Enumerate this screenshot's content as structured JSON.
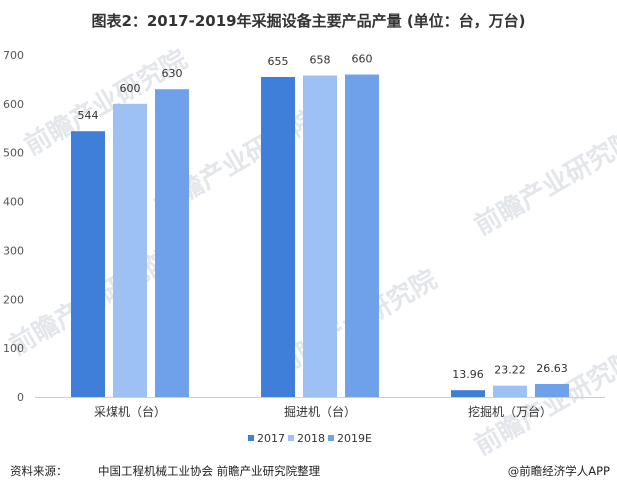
{
  "chart_data": {
    "type": "bar",
    "title": "图表2：2017-2019年采掘设备主要产品产量 (单位：台，万台)",
    "categories": [
      "采煤机（台）",
      "掘进机（台）",
      "挖掘机（万台）"
    ],
    "series": [
      {
        "name": "2017",
        "values": [
          544,
          655,
          13.96
        ],
        "labels": [
          "544",
          "655",
          "13.96"
        ],
        "color": "#3f7fd9"
      },
      {
        "name": "2018",
        "values": [
          600,
          658,
          23.22
        ],
        "labels": [
          "600",
          "658",
          "23.22"
        ],
        "color": "#9cc1f2"
      },
      {
        "name": "2019E",
        "values": [
          630,
          660,
          26.63
        ],
        "labels": [
          "630",
          "660",
          "26.63"
        ],
        "color": "#6ea1ea"
      }
    ],
    "ylim": [
      0,
      700
    ],
    "yticks": [
      "0",
      "100",
      "200",
      "300",
      "400",
      "500",
      "600",
      "700"
    ],
    "grid": false,
    "legend": "bottom"
  },
  "watermark": "前瞻产业研究院",
  "footer": {
    "source_label": "资料来源：",
    "source_text": "中国工程机械工业协会  前瞻产业研究院整理",
    "brand": "@前瞻经济学人APP"
  }
}
